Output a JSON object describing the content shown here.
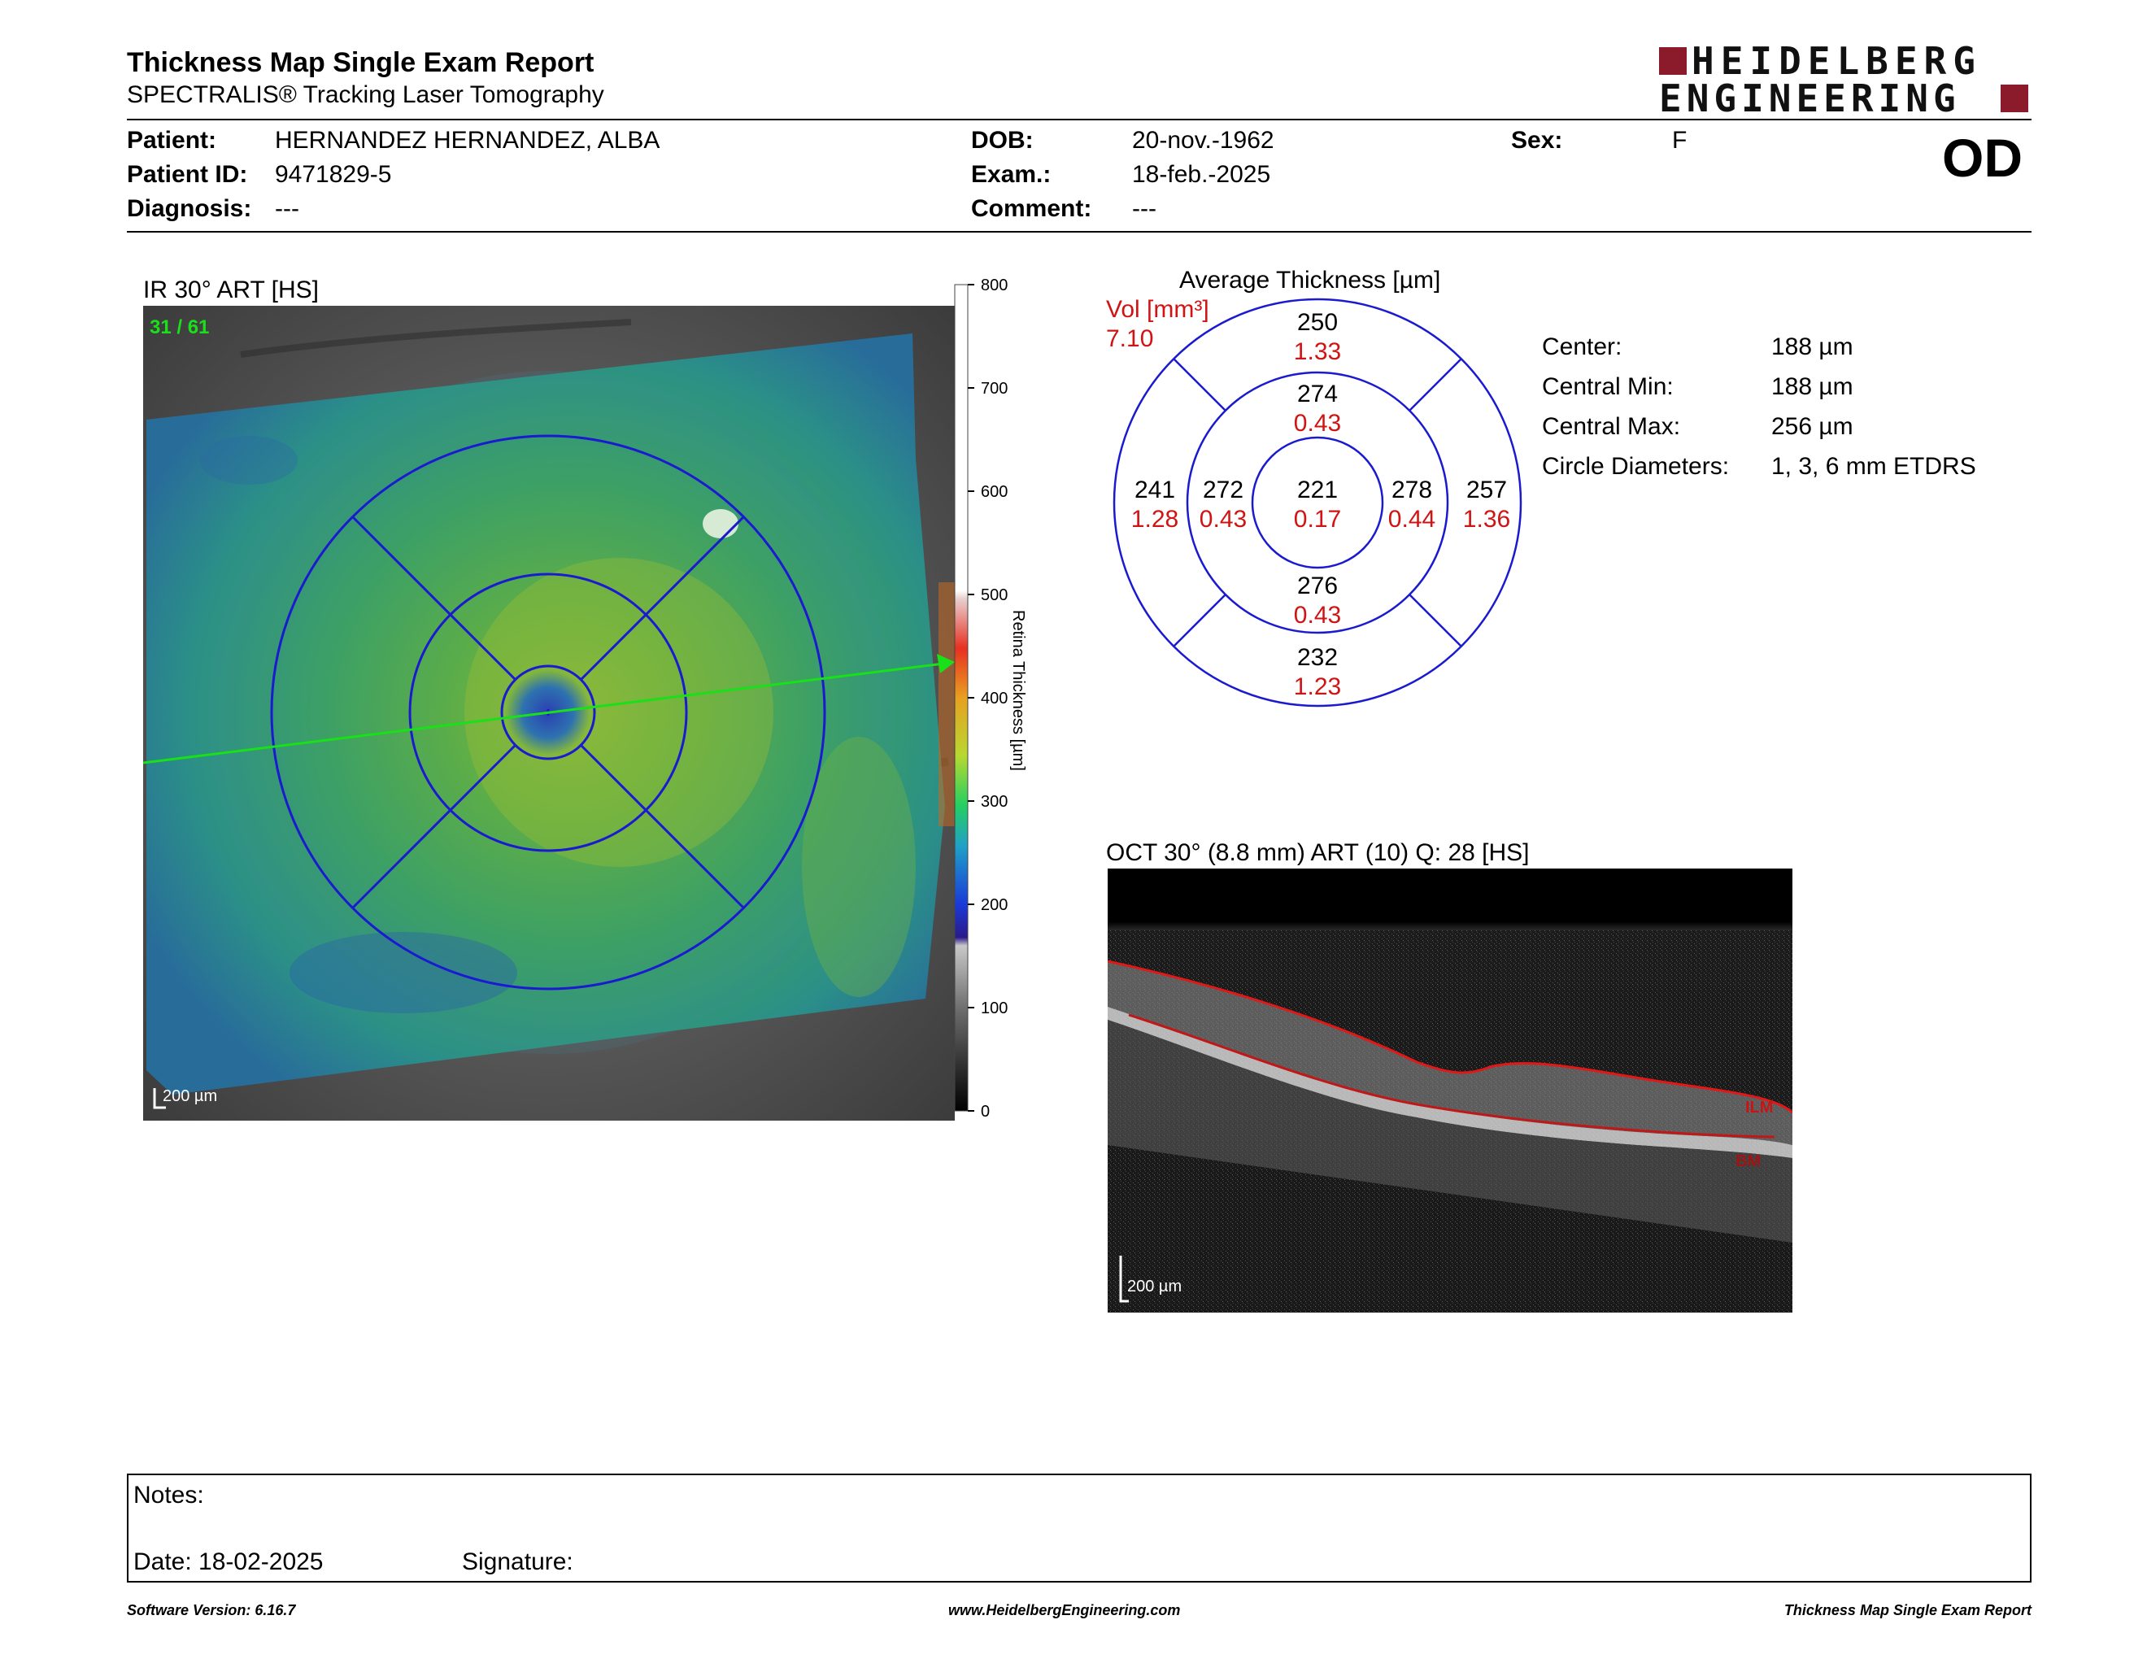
{
  "header": {
    "title": "Thickness Map Single Exam Report",
    "subtitle": "SPECTRALIS® Tracking Laser Tomography",
    "logo_line1": "HEIDELBERG",
    "logo_line2": "ENGINEERING",
    "eye": "OD"
  },
  "patient": {
    "patient_label": "Patient:",
    "patient_value": "HERNANDEZ HERNANDEZ, ALBA",
    "id_label": "Patient ID:",
    "id_value": "9471829-5",
    "diagnosis_label": "Diagnosis:",
    "diagnosis_value": "---",
    "dob_label": "DOB:",
    "dob_value": "20-nov.-1962",
    "exam_label": "Exam.:",
    "exam_value": "18-feb.-2025",
    "comment_label": "Comment:",
    "comment_value": "---",
    "sex_label": "Sex:",
    "sex_value": "F"
  },
  "ir_panel": {
    "title": "IR 30° ART [HS]",
    "frame": "31 / 61",
    "scale": "200 µm",
    "colorbar_label": "Retina Thickness [µm]",
    "colorbar_ticks": [
      "800",
      "700",
      "600",
      "500",
      "400",
      "300",
      "200",
      "100",
      "0"
    ]
  },
  "etdrs": {
    "title": "Average Thickness [µm]",
    "vol_label": "Vol [mm³]",
    "vol_value": "7.10",
    "sectors": {
      "center": {
        "thick": "221",
        "vol": "0.17"
      },
      "inner_top": {
        "thick": "274",
        "vol": "0.43"
      },
      "inner_left": {
        "thick": "272",
        "vol": "0.43"
      },
      "inner_right": {
        "thick": "278",
        "vol": "0.44"
      },
      "inner_bottom": {
        "thick": "276",
        "vol": "0.43"
      },
      "outer_top": {
        "thick": "250",
        "vol": "1.33"
      },
      "outer_left": {
        "thick": "241",
        "vol": "1.28"
      },
      "outer_right": {
        "thick": "257",
        "vol": "1.36"
      },
      "outer_bottom": {
        "thick": "232",
        "vol": "1.23"
      }
    }
  },
  "stats": [
    {
      "label": "Center:",
      "value": "188 µm"
    },
    {
      "label": "Central Min:",
      "value": "188 µm"
    },
    {
      "label": "Central Max:",
      "value": "256 µm"
    },
    {
      "label": "Circle Diameters:",
      "value": "1, 3, 6 mm ETDRS"
    }
  ],
  "oct_panel": {
    "title": "OCT 30° (8.8 mm) ART (10) Q: 28 [HS]",
    "ilm": "ILM",
    "bm": "BM",
    "scale": "200 µm"
  },
  "notes": {
    "notes_label": "Notes:",
    "date_label": "Date: 18-02-2025",
    "signature_label": "Signature:"
  },
  "footer": {
    "left": "Software Version: 6.16.7",
    "center": "www.HeidelbergEngineering.com",
    "right": "Thickness Map Single Exam Report"
  },
  "colors": {
    "brand": "#8b1a2b",
    "grid": "#1a1ad0",
    "volume_text": "#d01414",
    "scan_line": "#19e019"
  }
}
